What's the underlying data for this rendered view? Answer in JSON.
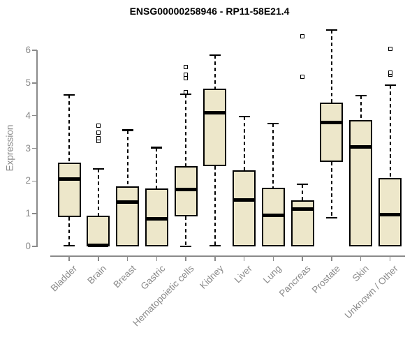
{
  "title": "ENSG00000258946 - RP11-58E21.4",
  "colors": {
    "box_fill": "#EDE7CA",
    "box_border": "#000000",
    "median": "#000000",
    "axis": "#8a8a8a",
    "title": "#000000",
    "background": "#ffffff"
  },
  "chart_data": {
    "type": "boxplot",
    "title": "ENSG00000258946 - RP11-58E21.4",
    "xlabel": "",
    "ylabel": "Expression",
    "ylim": [
      0,
      6.65
    ],
    "yticks": [
      "0",
      "1",
      "2",
      "3",
      "4",
      "5",
      "6"
    ],
    "grid": false,
    "whisker_style": "dashed",
    "categories": [
      "Bladder",
      "Brain",
      "Breast",
      "Gastric",
      "Hematopoietic cells",
      "Kidney",
      "Liver",
      "Lung",
      "Pancreas",
      "Prostate",
      "Skin",
      "Unknown / Other"
    ],
    "series": [
      {
        "name": "Bladder",
        "whisker_low": 0.02,
        "q1": 0.9,
        "median": 2.06,
        "q3": 2.57,
        "whisker_high": 4.63,
        "outliers": []
      },
      {
        "name": "Brain",
        "whisker_low": 0.0,
        "q1": 0.0,
        "median": 0.04,
        "q3": 0.93,
        "whisker_high": 2.37,
        "outliers": [
          3.22,
          3.32,
          3.48,
          3.69
        ]
      },
      {
        "name": "Breast",
        "whisker_low": 0.0,
        "q1": 0.0,
        "median": 1.35,
        "q3": 1.84,
        "whisker_high": 3.55,
        "outliers": []
      },
      {
        "name": "Gastric",
        "whisker_low": 0.0,
        "q1": 0.0,
        "median": 0.85,
        "q3": 1.77,
        "whisker_high": 3.02,
        "outliers": []
      },
      {
        "name": "Hematopoietic cells",
        "whisker_low": 0.0,
        "q1": 0.92,
        "median": 1.74,
        "q3": 2.45,
        "whisker_high": 4.66,
        "outliers": [
          4.72,
          5.15,
          5.25,
          5.48
        ]
      },
      {
        "name": "Kidney",
        "whisker_low": 0.02,
        "q1": 2.46,
        "median": 4.08,
        "q3": 4.83,
        "whisker_high": 5.85,
        "outliers": []
      },
      {
        "name": "Liver",
        "whisker_low": 0.0,
        "q1": 0.0,
        "median": 1.43,
        "q3": 2.33,
        "whisker_high": 3.97,
        "outliers": []
      },
      {
        "name": "Lung",
        "whisker_low": 0.0,
        "q1": 0.0,
        "median": 0.94,
        "q3": 1.79,
        "whisker_high": 3.76,
        "outliers": []
      },
      {
        "name": "Pancreas",
        "whisker_low": 0.0,
        "q1": 0.0,
        "median": 1.15,
        "q3": 1.4,
        "whisker_high": 1.9,
        "outliers": [
          5.19,
          6.42
        ]
      },
      {
        "name": "Prostate",
        "whisker_low": 0.88,
        "q1": 2.58,
        "median": 3.78,
        "q3": 4.4,
        "whisker_high": 6.62,
        "outliers": []
      },
      {
        "name": "Skin",
        "whisker_low": 0.0,
        "q1": 0.0,
        "median": 3.05,
        "q3": 3.87,
        "whisker_high": 4.61,
        "outliers": []
      },
      {
        "name": "Unknown / Other",
        "whisker_low": 0.0,
        "q1": 0.0,
        "median": 0.98,
        "q3": 2.09,
        "whisker_high": 4.93,
        "outliers": [
          5.25,
          5.32,
          6.05
        ]
      }
    ]
  }
}
